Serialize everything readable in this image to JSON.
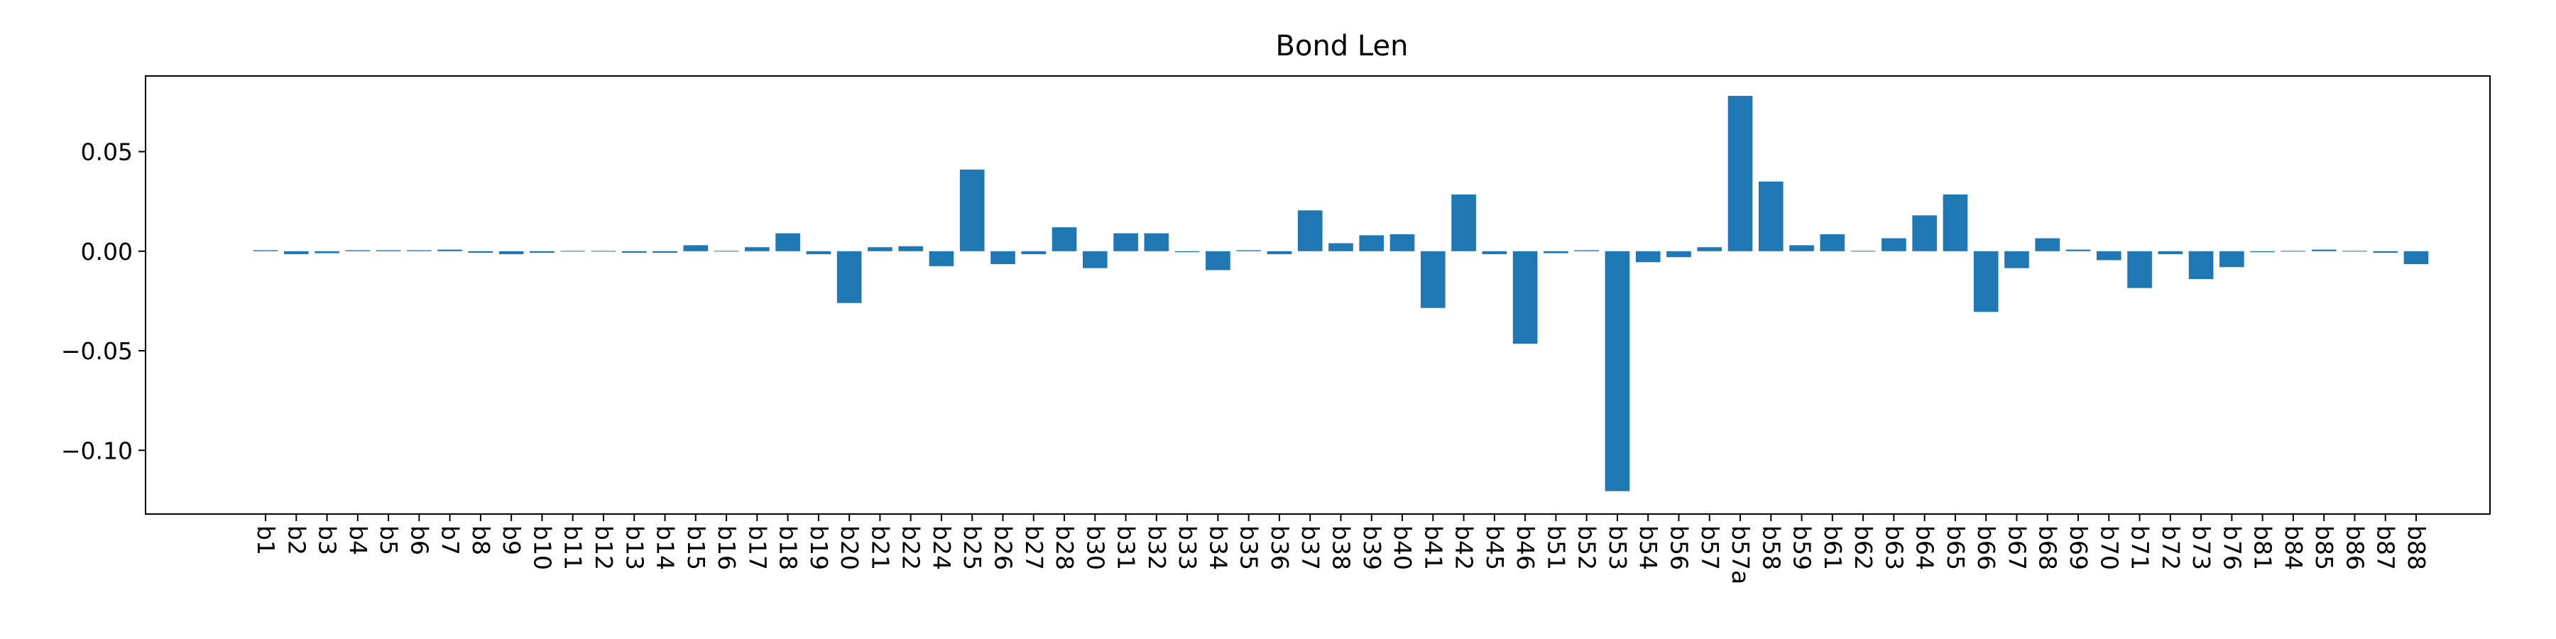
{
  "chart_data": {
    "type": "bar",
    "title": "Bond Len",
    "xlabel": "",
    "ylabel": "",
    "ylim": [
      -0.132,
      0.088
    ],
    "yticks": [
      0.05,
      0.0,
      -0.05,
      -0.1
    ],
    "ytick_labels": [
      "0.05",
      "0.00",
      "−0.05",
      "−0.10"
    ],
    "grid": false,
    "legend": "none",
    "bar_color": "#1f77b4",
    "categories": [
      "b1",
      "b2",
      "b3",
      "b4",
      "b5",
      "b6",
      "b7",
      "b8",
      "b9",
      "b10",
      "b11",
      "b12",
      "b13",
      "b14",
      "b15",
      "b16",
      "b17",
      "b18",
      "b19",
      "b20",
      "b21",
      "b22",
      "b24",
      "b25",
      "b26",
      "b27",
      "b28",
      "b30",
      "b31",
      "b32",
      "b33",
      "b34",
      "b35",
      "b36",
      "b37",
      "b38",
      "b39",
      "b40",
      "b41",
      "b42",
      "b45",
      "b46",
      "b51",
      "b52",
      "b53",
      "b54",
      "b56",
      "b57",
      "b57a",
      "b58",
      "b59",
      "b61",
      "b62",
      "b63",
      "b64",
      "b65",
      "b66",
      "b67",
      "b68",
      "b69",
      "b70",
      "b71",
      "b72",
      "b73",
      "b76",
      "b81",
      "b84",
      "b85",
      "b86",
      "b87",
      "b88"
    ],
    "values": [
      0.0005,
      -0.0015,
      -0.001,
      0.0005,
      0.0005,
      0.0005,
      0.0008,
      -0.0008,
      -0.0015,
      -0.0008,
      0.0003,
      0.0003,
      -0.0008,
      -0.0008,
      0.003,
      0.0003,
      0.002,
      0.009,
      -0.0015,
      -0.026,
      0.002,
      0.0025,
      -0.0075,
      0.041,
      -0.0065,
      -0.0015,
      0.012,
      -0.0085,
      0.009,
      0.009,
      -0.0005,
      -0.0095,
      0.0005,
      -0.0015,
      0.0205,
      0.004,
      0.008,
      0.0085,
      -0.0285,
      0.0285,
      -0.0015,
      -0.0465,
      -0.001,
      0.0005,
      -0.1205,
      -0.0055,
      -0.003,
      0.002,
      0.078,
      0.035,
      0.003,
      0.0085,
      0.0,
      0.0065,
      0.018,
      0.0285,
      -0.0305,
      -0.0085,
      0.0065,
      0.0008,
      -0.0045,
      -0.0185,
      -0.0015,
      -0.014,
      -0.008,
      -0.0005,
      0.0,
      0.0008,
      0.0003,
      -0.0008,
      -0.0065
    ]
  }
}
